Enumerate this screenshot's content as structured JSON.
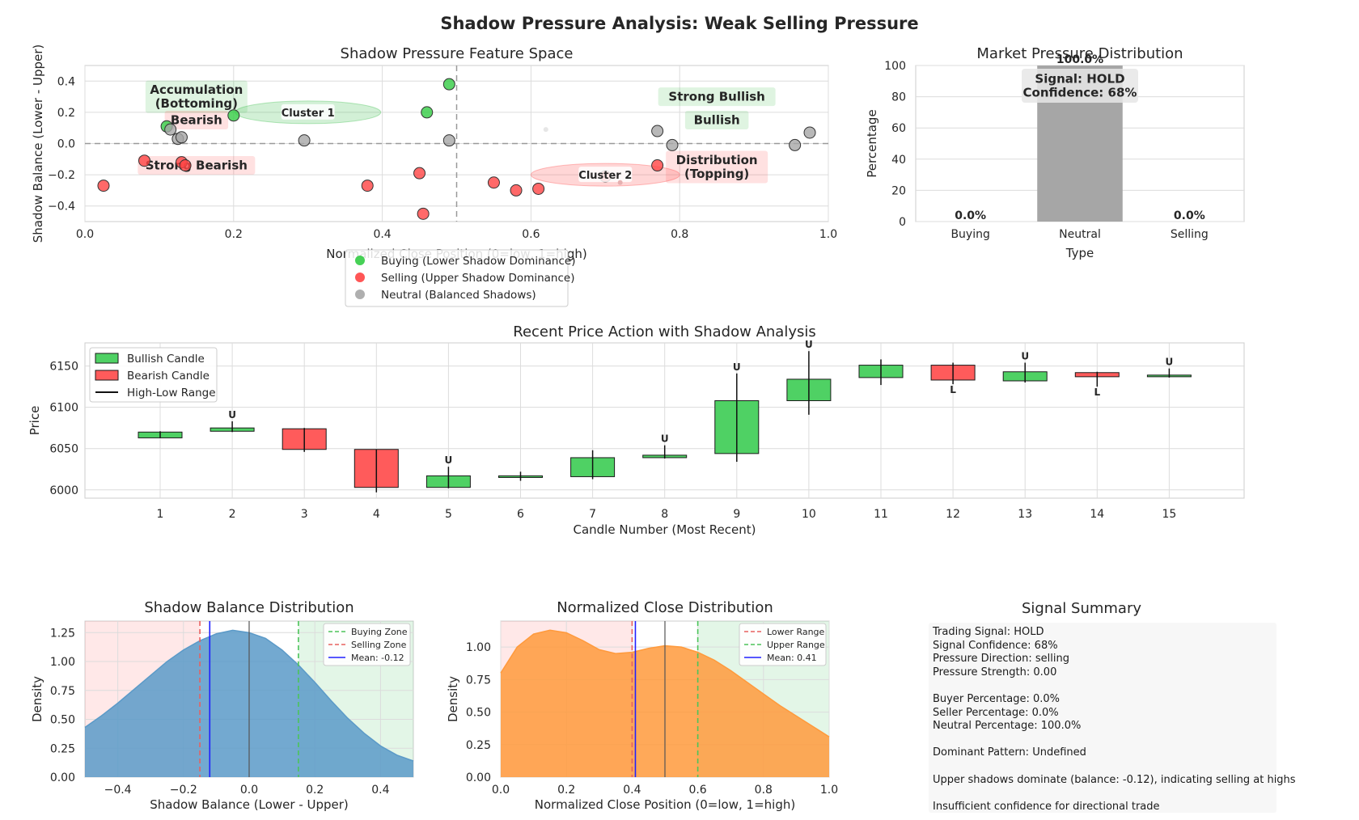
{
  "figure": {
    "title": "Shadow Pressure Analysis: Weak Selling Pressure"
  },
  "colors": {
    "buying": "#33cc44",
    "selling": "#ff4444",
    "neutral": "#a6a6a6",
    "bullish": "#4fd164",
    "bearish": "#ff5b5b",
    "kde_balance": "#5b9ac8",
    "kde_close": "#ff9a3c"
  },
  "chart_data": [
    {
      "id": "feature_space",
      "type": "scatter",
      "title": "Shadow Pressure Feature Space",
      "xlabel": "Normalized Close Position (0=low, 1=high)",
      "ylabel": "Shadow Balance (Lower - Upper)",
      "xlim": [
        0,
        1
      ],
      "ylim": [
        -0.5,
        0.5
      ],
      "xticks": [
        "0.0",
        "0.2",
        "0.4",
        "0.6",
        "0.8",
        "1.0"
      ],
      "yticks": [
        "−0.4",
        "−0.2",
        "0.0",
        "0.2",
        "0.4"
      ],
      "grid": true,
      "series": [
        {
          "name": "Buying (Lower Shadow Dominance)",
          "points": [
            [
              0.11,
              0.11
            ],
            [
              0.2,
              0.18
            ],
            [
              0.46,
              0.2
            ],
            [
              0.49,
              0.38
            ]
          ]
        },
        {
          "name": "Selling (Upper Shadow Dominance)",
          "points": [
            [
              0.025,
              -0.27
            ],
            [
              0.08,
              -0.11
            ],
            [
              0.13,
              -0.12
            ],
            [
              0.135,
              -0.14
            ],
            [
              0.38,
              -0.27
            ],
            [
              0.45,
              -0.19
            ],
            [
              0.455,
              -0.45
            ],
            [
              0.55,
              -0.25
            ],
            [
              0.58,
              -0.3
            ],
            [
              0.61,
              -0.29
            ],
            [
              0.7,
              -0.21
            ],
            [
              0.77,
              -0.14
            ]
          ]
        },
        {
          "name": "Neutral (Balanced Shadows)",
          "points": [
            [
              0.115,
              0.09
            ],
            [
              0.125,
              0.03
            ],
            [
              0.13,
              0.04
            ],
            [
              0.295,
              0.02
            ],
            [
              0.49,
              0.02
            ],
            [
              0.77,
              0.08
            ],
            [
              0.79,
              -0.01
            ],
            [
              0.955,
              -0.01
            ],
            [
              0.975,
              0.07
            ]
          ]
        }
      ],
      "clusters": [
        {
          "label": "Cluster 1",
          "x": 0.3,
          "y": 0.2,
          "color": "green"
        },
        {
          "label": "Cluster 2",
          "x": 0.7,
          "y": -0.2,
          "color": "red"
        }
      ],
      "zones": [
        {
          "label": "Accumulation\n(Bottoming)",
          "x": 0.15,
          "y": 0.3,
          "color": "green"
        },
        {
          "label": "Bearish",
          "x": 0.15,
          "y": 0.15,
          "color": "red"
        },
        {
          "label": "Strong Bearish",
          "x": 0.15,
          "y": -0.14,
          "color": "red"
        },
        {
          "label": "Strong Bullish",
          "x": 0.85,
          "y": 0.3,
          "color": "green"
        },
        {
          "label": "Bullish",
          "x": 0.85,
          "y": 0.15,
          "color": "green"
        },
        {
          "label": "Distribution\n(Topping)",
          "x": 0.85,
          "y": -0.15,
          "color": "red"
        }
      ],
      "reference_lines": {
        "x": 0.5,
        "y": 0
      },
      "legend_position": "below"
    },
    {
      "id": "pressure_distribution",
      "type": "bar",
      "title": "Market Pressure Distribution",
      "xlabel": "Type",
      "ylabel": "Percentage",
      "categories": [
        "Buying",
        "Neutral",
        "Selling"
      ],
      "values": [
        0.0,
        100.0,
        0.0
      ],
      "value_labels": [
        "0.0%",
        "100.0%",
        "0.0%"
      ],
      "ylim": [
        0,
        100
      ],
      "yticks": [
        "0",
        "20",
        "40",
        "60",
        "80",
        "100"
      ],
      "annotation": "Signal: HOLD\nConfidence: 68%"
    },
    {
      "id": "price_action",
      "type": "candlestick",
      "title": "Recent Price Action with Shadow Analysis",
      "xlabel": "Candle Number (Most Recent)",
      "ylabel": "Price",
      "ylim": [
        5990,
        6178
      ],
      "yticks": [
        "6000",
        "6050",
        "6100",
        "6150"
      ],
      "legend": [
        "Bullish Candle",
        "Bearish Candle",
        "High-Low Range"
      ],
      "marker_labels": {
        "upper": "U",
        "lower": "L"
      },
      "candles": [
        {
          "n": "1",
          "open": 6063,
          "close": 6070,
          "high": 6071,
          "low": 6063
        },
        {
          "n": "2",
          "open": 6071,
          "close": 6075,
          "high": 6083,
          "low": 6070,
          "marker": "U"
        },
        {
          "n": "3",
          "open": 6074,
          "close": 6049,
          "high": 6075,
          "low": 6046
        },
        {
          "n": "4",
          "open": 6049,
          "close": 6003,
          "high": 6049,
          "low": 5997
        },
        {
          "n": "5",
          "open": 6003,
          "close": 6017,
          "high": 6028,
          "low": 6002,
          "marker": "U"
        },
        {
          "n": "6",
          "open": 6015,
          "close": 6017,
          "high": 6022,
          "low": 6011
        },
        {
          "n": "7",
          "open": 6016,
          "close": 6039,
          "high": 6048,
          "low": 6013
        },
        {
          "n": "8",
          "open": 6039,
          "close": 6042,
          "high": 6054,
          "low": 6038,
          "marker": "U"
        },
        {
          "n": "9",
          "open": 6044,
          "close": 6108,
          "high": 6141,
          "low": 6034,
          "marker": "U"
        },
        {
          "n": "10",
          "open": 6108,
          "close": 6134,
          "high": 6168,
          "low": 6091,
          "marker": "U"
        },
        {
          "n": "11",
          "open": 6136,
          "close": 6151,
          "high": 6158,
          "low": 6127
        },
        {
          "n": "12",
          "open": 6151,
          "close": 6133,
          "high": 6154,
          "low": 6128,
          "marker": "L"
        },
        {
          "n": "13",
          "open": 6132,
          "close": 6143,
          "high": 6154,
          "low": 6130,
          "marker": "U"
        },
        {
          "n": "14",
          "open": 6142,
          "close": 6137,
          "high": 6143,
          "low": 6125,
          "marker": "L"
        },
        {
          "n": "15",
          "open": 6137,
          "close": 6139,
          "high": 6147,
          "low": 6136,
          "marker": "U"
        }
      ]
    },
    {
      "id": "balance_kde",
      "type": "area",
      "title": "Shadow Balance Distribution",
      "xlabel": "Shadow Balance (Lower - Upper)",
      "ylabel": "Density",
      "xlim": [
        -0.5,
        0.5
      ],
      "ylim": [
        0,
        1.35
      ],
      "xticks": [
        "−0.4",
        "−0.2",
        "0.0",
        "0.2",
        "0.4"
      ],
      "yticks": [
        "0.00",
        "0.25",
        "0.50",
        "0.75",
        "1.00",
        "1.25"
      ],
      "x": [
        -0.5,
        -0.45,
        -0.4,
        -0.35,
        -0.3,
        -0.25,
        -0.2,
        -0.15,
        -0.1,
        -0.05,
        0,
        0.05,
        0.1,
        0.15,
        0.2,
        0.25,
        0.3,
        0.35,
        0.4,
        0.45,
        0.5
      ],
      "y": [
        0.43,
        0.53,
        0.64,
        0.76,
        0.88,
        1.0,
        1.1,
        1.18,
        1.24,
        1.27,
        1.25,
        1.2,
        1.1,
        0.97,
        0.82,
        0.66,
        0.51,
        0.38,
        0.27,
        0.19,
        0.14
      ],
      "lines": [
        {
          "name": "Buying Zone",
          "x": 0.15,
          "style": "dashed",
          "color": "#4cc45a"
        },
        {
          "name": "Selling Zone",
          "x": -0.15,
          "style": "dashed",
          "color": "#e8605f"
        },
        {
          "name": "Mean: -0.12",
          "x": -0.12,
          "style": "solid",
          "color": "#2020ff"
        }
      ],
      "center_line": 0
    },
    {
      "id": "close_kde",
      "type": "area",
      "title": "Normalized Close Distribution",
      "xlabel": "Normalized Close Position (0=low, 1=high)",
      "ylabel": "Density",
      "xlim": [
        0,
        1
      ],
      "ylim": [
        0,
        1.2
      ],
      "xticks": [
        "0.0",
        "0.2",
        "0.4",
        "0.6",
        "0.8",
        "1.0"
      ],
      "yticks": [
        "0.00",
        "0.25",
        "0.50",
        "0.75",
        "1.00"
      ],
      "x": [
        0,
        0.05,
        0.1,
        0.15,
        0.2,
        0.25,
        0.3,
        0.35,
        0.4,
        0.45,
        0.5,
        0.55,
        0.6,
        0.65,
        0.7,
        0.75,
        0.8,
        0.85,
        0.9,
        0.95,
        1.0
      ],
      "y": [
        0.8,
        1.0,
        1.1,
        1.13,
        1.11,
        1.05,
        0.98,
        0.95,
        0.96,
        0.99,
        1.01,
        1.0,
        0.96,
        0.9,
        0.82,
        0.73,
        0.64,
        0.55,
        0.47,
        0.39,
        0.31
      ],
      "lines": [
        {
          "name": "Lower Range",
          "x": 0.4,
          "style": "dashed",
          "color": "#e8605f"
        },
        {
          "name": "Upper Range",
          "x": 0.6,
          "style": "dashed",
          "color": "#4cc45a"
        },
        {
          "name": "Mean: 0.41",
          "x": 0.41,
          "style": "solid",
          "color": "#2020ff"
        }
      ],
      "center_line": 0.5
    }
  ],
  "summary": {
    "title": "Signal Summary",
    "lines": [
      "Trading Signal: HOLD",
      "Signal Confidence: 68%",
      "Pressure Direction: selling",
      "Pressure Strength: 0.00",
      "",
      "Buyer Percentage: 0.0%",
      "Seller Percentage: 0.0%",
      "Neutral Percentage: 100.0%",
      "",
      "Dominant Pattern: Undefined",
      "",
      "Upper shadows dominate (balance: -0.12), indicating selling at highs",
      "",
      "Insufficient confidence for directional trade"
    ]
  }
}
